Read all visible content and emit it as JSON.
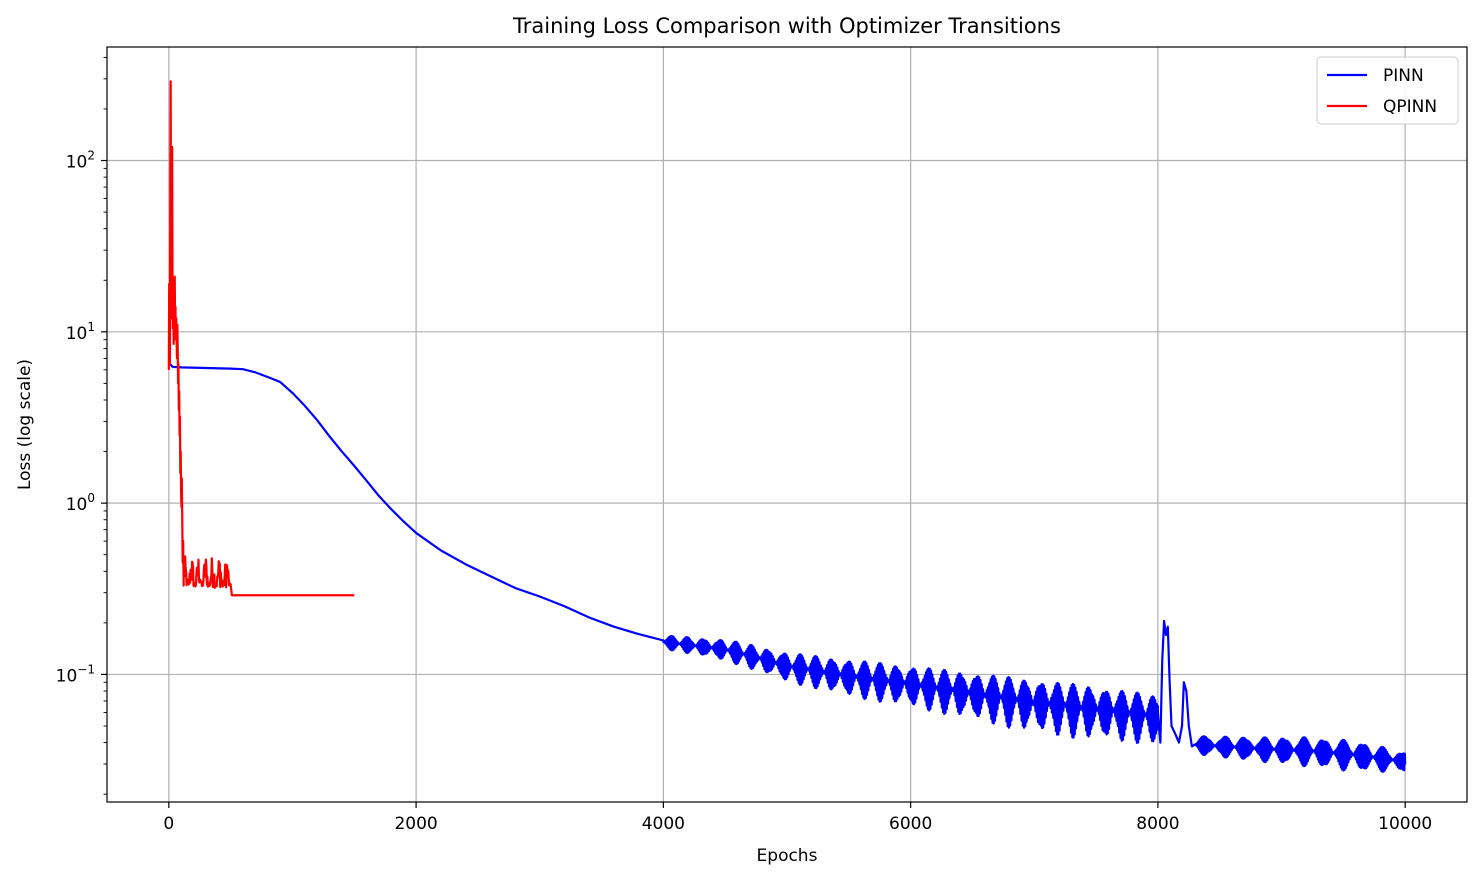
{
  "chart_data": {
    "type": "line",
    "title": "Training Loss Comparison with Optimizer Transitions",
    "xlabel": "Epochs",
    "ylabel": "Loss (log scale)",
    "xlim": [
      -500,
      10500
    ],
    "ylim": [
      0.018,
      460
    ],
    "yscale": "log",
    "grid": true,
    "legend_position": "top-right",
    "x_ticks": [
      0,
      2000,
      4000,
      6000,
      8000,
      10000
    ],
    "x_tick_labels": [
      "0",
      "2000",
      "4000",
      "6000",
      "8000",
      "10000"
    ],
    "y_ticks": [
      0.1,
      1,
      10,
      100
    ],
    "y_tick_labels": [
      {
        "base": "10",
        "exp": "−1"
      },
      {
        "base": "10",
        "exp": "0"
      },
      {
        "base": "10",
        "exp": "1"
      },
      {
        "base": "10",
        "exp": "2"
      }
    ],
    "series": [
      {
        "name": "PINN",
        "color": "#0000ff",
        "smooth": [
          [
            0,
            6.6
          ],
          [
            30,
            6.25
          ],
          [
            100,
            6.2
          ],
          [
            300,
            6.15
          ],
          [
            500,
            6.1
          ],
          [
            600,
            6.05
          ],
          [
            700,
            5.8
          ],
          [
            800,
            5.45
          ],
          [
            900,
            5.1
          ],
          [
            1000,
            4.4
          ],
          [
            1100,
            3.7
          ],
          [
            1200,
            3.05
          ],
          [
            1300,
            2.45
          ],
          [
            1400,
            2.0
          ],
          [
            1500,
            1.65
          ],
          [
            1600,
            1.35
          ],
          [
            1700,
            1.1
          ],
          [
            1800,
            0.92
          ],
          [
            1900,
            0.78
          ],
          [
            2000,
            0.67
          ],
          [
            2200,
            0.53
          ],
          [
            2400,
            0.44
          ],
          [
            2600,
            0.375
          ],
          [
            2800,
            0.32
          ],
          [
            3000,
            0.285
          ],
          [
            3200,
            0.25
          ],
          [
            3400,
            0.215
          ],
          [
            3600,
            0.19
          ],
          [
            3800,
            0.172
          ],
          [
            4000,
            0.158
          ]
        ],
        "oscillating": [
          [
            4000,
            0.155,
            0.014
          ],
          [
            4500,
            0.14,
            0.02
          ],
          [
            5000,
            0.112,
            0.022
          ],
          [
            5500,
            0.098,
            0.024
          ],
          [
            6000,
            0.088,
            0.024
          ],
          [
            6500,
            0.078,
            0.024
          ],
          [
            7000,
            0.069,
            0.024
          ],
          [
            7500,
            0.063,
            0.022
          ],
          [
            8000,
            0.057,
            0.018
          ]
        ],
        "spike": [
          [
            8000,
            0.06
          ],
          [
            8020,
            0.04
          ],
          [
            8035,
            0.12
          ],
          [
            8050,
            0.205
          ],
          [
            8065,
            0.17
          ],
          [
            8080,
            0.19
          ],
          [
            8095,
            0.09
          ],
          [
            8110,
            0.05
          ],
          [
            8140,
            0.045
          ],
          [
            8170,
            0.04
          ],
          [
            8195,
            0.05
          ],
          [
            8210,
            0.09
          ],
          [
            8230,
            0.08
          ],
          [
            8250,
            0.05
          ],
          [
            8275,
            0.038
          ]
        ],
        "late": [
          [
            8300,
            0.039,
            0.005
          ],
          [
            8800,
            0.037,
            0.006
          ],
          [
            9200,
            0.036,
            0.007
          ],
          [
            9600,
            0.034,
            0.007
          ],
          [
            10000,
            0.031,
            0.004
          ]
        ]
      },
      {
        "name": "QPINN",
        "color": "#ff0000",
        "early": [
          [
            0,
            6.0
          ],
          [
            3,
            19.0
          ],
          [
            6,
            9.0
          ],
          [
            9,
            6.5
          ],
          [
            12,
            70.0
          ],
          [
            15,
            290.0
          ],
          [
            18,
            25.0
          ],
          [
            21,
            12.0
          ],
          [
            24,
            40.0
          ],
          [
            27,
            120.0
          ],
          [
            30,
            18.0
          ],
          [
            33,
            10.5
          ],
          [
            36,
            20.0
          ],
          [
            39,
            8.5
          ],
          [
            42,
            15.0
          ],
          [
            45,
            9.0
          ],
          [
            48,
            21.0
          ],
          [
            51,
            10.0
          ],
          [
            54,
            14.0
          ],
          [
            57,
            9.5
          ],
          [
            60,
            12.0
          ],
          [
            63,
            9.0
          ],
          [
            66,
            7.0
          ],
          [
            69,
            11.0
          ],
          [
            72,
            8.0
          ],
          [
            75,
            5.0
          ],
          [
            78,
            6.5
          ],
          [
            81,
            3.5
          ],
          [
            84,
            4.5
          ],
          [
            87,
            2.5
          ],
          [
            90,
            3.2
          ],
          [
            93,
            1.5
          ],
          [
            96,
            2.0
          ],
          [
            99,
            1.2
          ],
          [
            102,
            0.95
          ],
          [
            105,
            1.4
          ],
          [
            108,
            0.9
          ],
          [
            112,
            0.45
          ],
          [
            116,
            0.6
          ],
          [
            120,
            0.33
          ]
        ],
        "noisy": [
          120,
          500,
          0.3,
          0.5
        ],
        "plateau": [
          [
            510,
            0.29
          ],
          [
            1500,
            0.29
          ]
        ]
      }
    ]
  }
}
